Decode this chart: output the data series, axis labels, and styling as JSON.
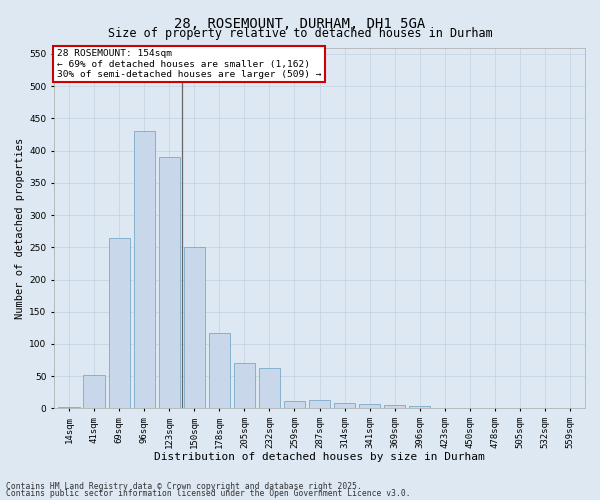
{
  "title": "28, ROSEMOUNT, DURHAM, DH1 5GA",
  "subtitle": "Size of property relative to detached houses in Durham",
  "xlabel": "Distribution of detached houses by size in Durham",
  "ylabel": "Number of detached properties",
  "categories": [
    "14sqm",
    "41sqm",
    "69sqm",
    "96sqm",
    "123sqm",
    "150sqm",
    "178sqm",
    "205sqm",
    "232sqm",
    "259sqm",
    "287sqm",
    "314sqm",
    "341sqm",
    "369sqm",
    "396sqm",
    "423sqm",
    "450sqm",
    "478sqm",
    "505sqm",
    "532sqm",
    "559sqm"
  ],
  "values": [
    2,
    52,
    265,
    430,
    390,
    250,
    117,
    70,
    63,
    12,
    13,
    9,
    7,
    6,
    4,
    1,
    1,
    1,
    1,
    1,
    1
  ],
  "bar_color": "#c8d8ea",
  "bar_edge_color": "#7aaac8",
  "highlight_index": 4,
  "highlight_line_color": "#666666",
  "annotation_text": "28 ROSEMOUNT: 154sqm\n← 69% of detached houses are smaller (1,162)\n30% of semi-detached houses are larger (509) →",
  "annotation_box_color": "#ffffff",
  "annotation_box_edge_color": "#cc0000",
  "annotation_fontsize": 6.8,
  "ylim": [
    0,
    560
  ],
  "yticks": [
    0,
    50,
    100,
    150,
    200,
    250,
    300,
    350,
    400,
    450,
    500,
    550
  ],
  "grid_color": "#c5d5e5",
  "background_color": "#dde8f2",
  "title_fontsize": 10,
  "subtitle_fontsize": 8.5,
  "xlabel_fontsize": 8,
  "ylabel_fontsize": 7.5,
  "tick_fontsize": 6.5,
  "footnote1": "Contains HM Land Registry data © Crown copyright and database right 2025.",
  "footnote2": "Contains public sector information licensed under the Open Government Licence v3.0."
}
